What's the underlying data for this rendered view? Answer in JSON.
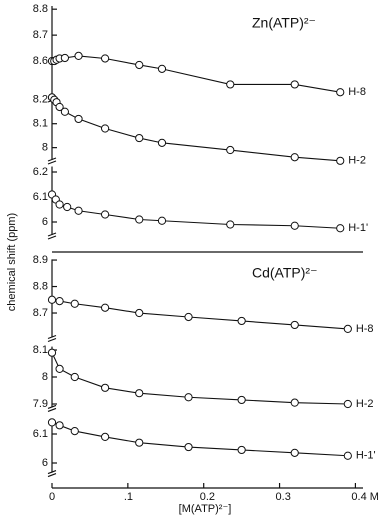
{
  "chart_data": {
    "type": "line",
    "ylabel": "chemical shift (ppm)",
    "xlabel": "[M(ATP)²⁻]",
    "xlim": [
      0,
      0.41
    ],
    "xticks": [
      0,
      {
        "value": 0.1,
        "label": ".1"
      },
      {
        "value": 0.2,
        "label": "0.2"
      },
      {
        "value": 0.3,
        "label": "0.3"
      },
      {
        "value": 0.4,
        "label": "0.4 M"
      }
    ],
    "color": "#111111",
    "panels": [
      {
        "title": "Zn(ATP)²⁻",
        "series": [
          {
            "name": "H-8",
            "ylim": [
              8.45,
              8.82
            ],
            "yticks": [
              8.8,
              8.7,
              8.6
            ],
            "x": [
              0,
              0.003,
              0.006,
              0.01,
              0.017,
              0.035,
              0.07,
              0.115,
              0.145,
              0.235,
              0.32,
              0.38
            ],
            "values": [
              8.6,
              8.6,
              8.605,
              8.61,
              8.612,
              8.62,
              8.61,
              8.585,
              8.57,
              8.51,
              8.51,
              8.48
            ]
          },
          {
            "name": "H-2",
            "ylim": [
              7.94,
              8.22
            ],
            "yticks": [
              8.2,
              8.1,
              8.0
            ],
            "x": [
              0,
              0.003,
              0.006,
              0.01,
              0.017,
              0.035,
              0.07,
              0.115,
              0.145,
              0.235,
              0.32,
              0.38
            ],
            "values": [
              8.21,
              8.2,
              8.19,
              8.17,
              8.15,
              8.12,
              8.08,
              8.04,
              8.02,
              7.99,
              7.96,
              7.945
            ]
          },
          {
            "name": "H-1'",
            "ylim": [
              5.94,
              6.23
            ],
            "yticks": [
              6.2,
              6.1,
              6.0
            ],
            "x": [
              0,
              0.005,
              0.01,
              0.02,
              0.035,
              0.07,
              0.115,
              0.145,
              0.235,
              0.32,
              0.38
            ],
            "values": [
              6.11,
              6.09,
              6.07,
              6.06,
              6.045,
              6.03,
              6.01,
              6.005,
              5.99,
              5.985,
              5.975
            ]
          }
        ]
      },
      {
        "title": "Cd(ATP)²⁻",
        "series": [
          {
            "name": "H-8",
            "ylim": [
              8.6,
              8.91
            ],
            "yticks": [
              8.9,
              8.8,
              8.7
            ],
            "x": [
              0,
              0.01,
              0.03,
              0.07,
              0.115,
              0.18,
              0.25,
              0.32,
              0.39
            ],
            "values": [
              8.75,
              8.745,
              8.735,
              8.72,
              8.7,
              8.685,
              8.67,
              8.655,
              8.64
            ]
          },
          {
            "name": "H-2",
            "ylim": [
              7.88,
              8.12
            ],
            "yticks": [
              8.1,
              8.0,
              7.9
            ],
            "x": [
              0,
              0.01,
              0.03,
              0.07,
              0.115,
              0.18,
              0.25,
              0.32,
              0.39
            ],
            "values": [
              8.09,
              8.03,
              8.0,
              7.96,
              7.94,
              7.925,
              7.915,
              7.905,
              7.9
            ]
          },
          {
            "name": "H-1'",
            "ylim": [
              5.96,
              6.16
            ],
            "yticks": [
              6.1,
              6.0
            ],
            "x": [
              0,
              0.01,
              0.03,
              0.07,
              0.115,
              0.18,
              0.25,
              0.32,
              0.39
            ],
            "values": [
              6.14,
              6.13,
              6.11,
              6.09,
              6.07,
              6.055,
              6.045,
              6.035,
              6.025
            ]
          }
        ]
      }
    ]
  }
}
